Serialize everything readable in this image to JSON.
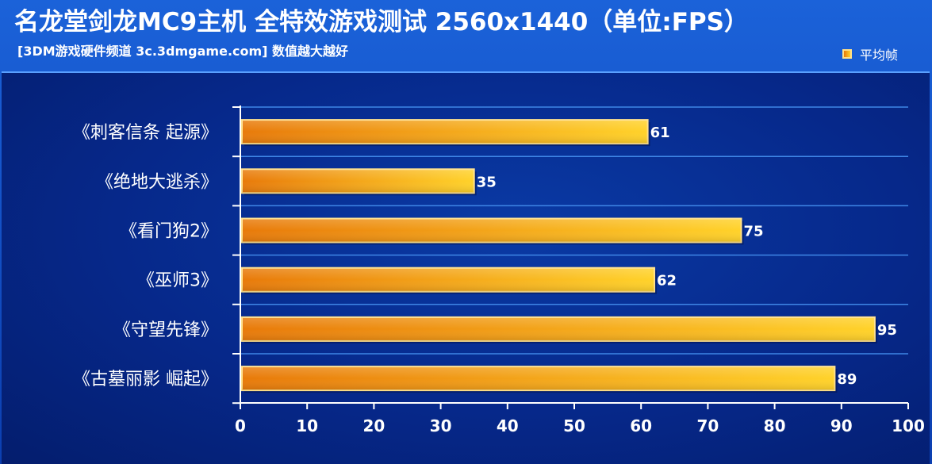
{
  "header": {
    "title": "名龙堂剑龙MC9主机 全特效游戏测试 2560x1440（单位:FPS）",
    "subtitle": "[3DM游戏硬件频道 3c.3dmgame.com] 数值越大越好"
  },
  "legend": {
    "label": "平均帧"
  },
  "colors": {
    "bar_start": "#e87a0a",
    "bar_end": "#ffd22a",
    "bar_border": "#ffe08a",
    "grid": "#3f86e6",
    "background": "#0a3aa5"
  },
  "chart_data": {
    "type": "bar",
    "orientation": "horizontal",
    "categories": [
      "《刺客信条 起源》",
      "《绝地大逃杀》",
      "《看门狗2》",
      "《巫师3》",
      "《守望先锋》",
      "《古墓丽影 崛起》"
    ],
    "series": [
      {
        "name": "平均帧",
        "values": [
          61,
          35,
          75,
          62,
          95,
          89
        ]
      }
    ],
    "xlim": [
      0,
      100
    ],
    "xticks": [
      0,
      10,
      20,
      30,
      40,
      50,
      60,
      70,
      80,
      90,
      100
    ],
    "grid": true,
    "legend_position": "top-right"
  }
}
